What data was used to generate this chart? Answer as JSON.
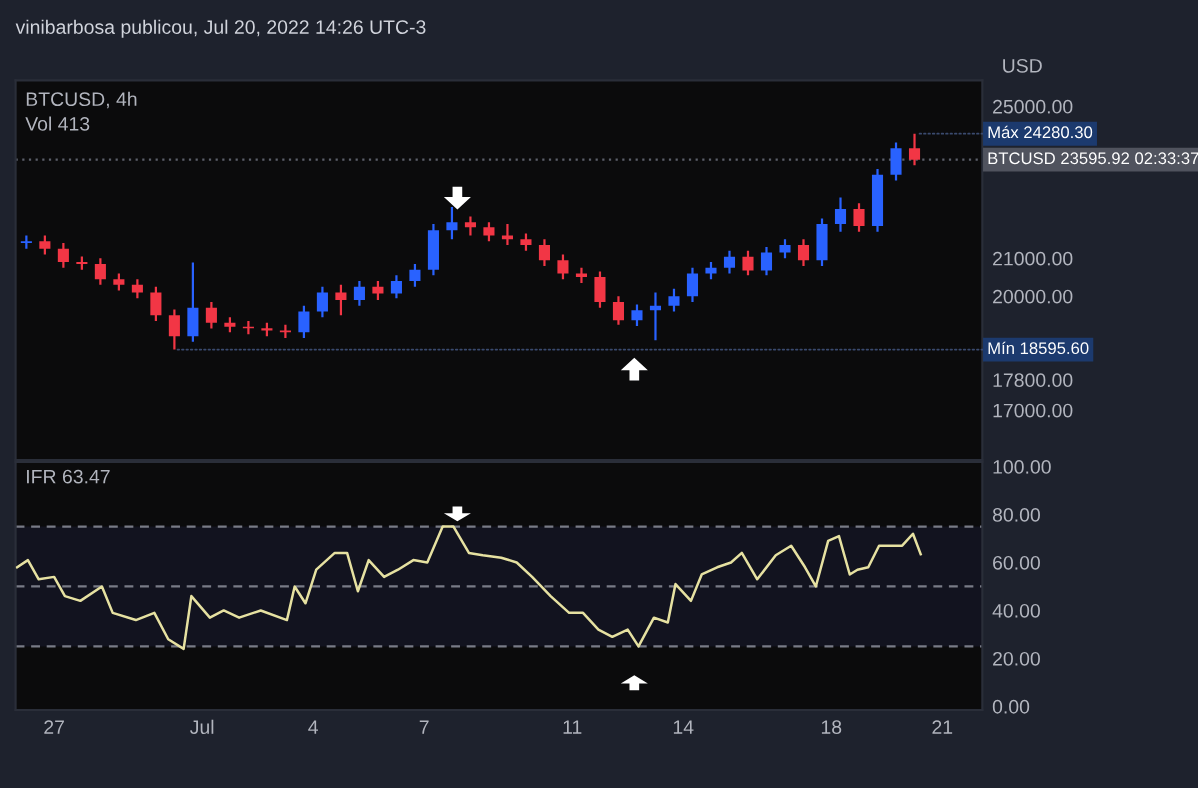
{
  "chart_data": [
    {
      "type": "candlestick",
      "title": "BTCUSD, 4h",
      "ylabel": "USD",
      "grid": false,
      "tick_labels": "y",
      "x": [
        "2022-06-26T06:00",
        "2022-06-26T18:00",
        "2022-06-27T06:00",
        "2022-06-27T18:00",
        "2022-06-28T06:00",
        "2022-06-28T18:00",
        "2022-06-29T06:00",
        "2022-06-29T18:00",
        "2022-06-30T06:00",
        "2022-06-30T18:00",
        "2022-07-01T06:00",
        "2022-07-01T18:00",
        "2022-07-02T06:00",
        "2022-07-02T18:00",
        "2022-07-03T06:00",
        "2022-07-03T18:00",
        "2022-07-04T06:00",
        "2022-07-04T18:00",
        "2022-07-05T06:00",
        "2022-07-05T18:00",
        "2022-07-06T06:00",
        "2022-07-06T18:00",
        "2022-07-07T06:00",
        "2022-07-07T18:00",
        "2022-07-08T06:00",
        "2022-07-08T18:00",
        "2022-07-09T06:00",
        "2022-07-09T18:00",
        "2022-07-10T06:00",
        "2022-07-10T18:00",
        "2022-07-11T06:00",
        "2022-07-11T18:00",
        "2022-07-12T06:00",
        "2022-07-12T18:00",
        "2022-07-13T06:00",
        "2022-07-13T18:00",
        "2022-07-14T06:00",
        "2022-07-14T18:00",
        "2022-07-15T06:00",
        "2022-07-15T18:00",
        "2022-07-16T06:00",
        "2022-07-16T18:00",
        "2022-07-17T06:00",
        "2022-07-17T18:00",
        "2022-07-18T06:00",
        "2022-07-18T18:00",
        "2022-07-19T06:00",
        "2022-07-19T18:00",
        "2022-07-20T06:00"
      ],
      "ohlc": [
        [
          21400,
          21600,
          21250,
          21450
        ],
        [
          21450,
          21600,
          21100,
          21250
        ],
        [
          21250,
          21400,
          20750,
          20900
        ],
        [
          20900,
          21050,
          20700,
          20850
        ],
        [
          20850,
          21000,
          20300,
          20450
        ],
        [
          20450,
          20600,
          20150,
          20300
        ],
        [
          20300,
          20450,
          19950,
          20100
        ],
        [
          20100,
          20250,
          19350,
          19500
        ],
        [
          19500,
          19650,
          18595.6,
          18950
        ],
        [
          18950,
          20890,
          18800,
          19700
        ],
        [
          19700,
          19850,
          19150,
          19300
        ],
        [
          19300,
          19450,
          19050,
          19200
        ],
        [
          19200,
          19350,
          19000,
          19160
        ],
        [
          19160,
          19300,
          18950,
          19100
        ],
        [
          19100,
          19250,
          18900,
          19050
        ],
        [
          19050,
          19750,
          18900,
          19600
        ],
        [
          19600,
          20250,
          19450,
          20100
        ],
        [
          20100,
          20300,
          19500,
          19900
        ],
        [
          19900,
          20400,
          19750,
          20250
        ],
        [
          20250,
          20400,
          19900,
          20070
        ],
        [
          20070,
          20550,
          19950,
          20400
        ],
        [
          20400,
          20850,
          20250,
          20700
        ],
        [
          20700,
          21900,
          20550,
          21740
        ],
        [
          21740,
          22350,
          21500,
          21950
        ],
        [
          21950,
          22100,
          21600,
          21820
        ],
        [
          21820,
          21950,
          21450,
          21600
        ],
        [
          21600,
          21900,
          21350,
          21500
        ],
        [
          21500,
          21650,
          21200,
          21350
        ],
        [
          21350,
          21500,
          20800,
          20950
        ],
        [
          20950,
          21100,
          20450,
          20600
        ],
        [
          20600,
          20750,
          20350,
          20510
        ],
        [
          20510,
          20650,
          19700,
          19850
        ],
        [
          19850,
          20000,
          19250,
          19370
        ],
        [
          19370,
          19780,
          19220,
          19630
        ],
        [
          19630,
          20100,
          18840,
          19750
        ],
        [
          19750,
          20200,
          19600,
          20000
        ],
        [
          20000,
          20750,
          19850,
          20600
        ],
        [
          20600,
          20900,
          20450,
          20750
        ],
        [
          20750,
          21200,
          20600,
          21040
        ],
        [
          21040,
          21200,
          20550,
          20680
        ],
        [
          20680,
          21300,
          20550,
          21150
        ],
        [
          21150,
          21500,
          21000,
          21350
        ],
        [
          21350,
          21500,
          20800,
          20950
        ],
        [
          20950,
          22050,
          20800,
          21900
        ],
        [
          21900,
          22600,
          21700,
          22300
        ],
        [
          22300,
          22450,
          21700,
          21850
        ],
        [
          21850,
          23350,
          21700,
          23200
        ],
        [
          23200,
          24050,
          23050,
          23900
        ],
        [
          23900,
          24280.3,
          23450,
          23595.92
        ]
      ],
      "colors": [
        "#2962ff",
        "#f23645",
        "#f23645",
        "#f23645",
        "#f23645",
        "#f23645",
        "#f23645",
        "#f23645",
        "#f23645",
        "#2962ff",
        "#f23645",
        "#f23645",
        "#f23645",
        "#f23645",
        "#f23645",
        "#2962ff",
        "#2962ff",
        "#f23645",
        "#2962ff",
        "#f23645",
        "#2962ff",
        "#2962ff",
        "#2962ff",
        "#2962ff",
        "#f23645",
        "#f23645",
        "#f23645",
        "#f23645",
        "#f23645",
        "#f23645",
        "#f23645",
        "#f23645",
        "#f23645",
        "#2962ff",
        "#2962ff",
        "#2962ff",
        "#2962ff",
        "#2962ff",
        "#2962ff",
        "#f23645",
        "#2962ff",
        "#2962ff",
        "#f23645",
        "#2962ff",
        "#2962ff",
        "#f23645",
        "#2962ff",
        "#2962ff",
        "#f23645"
      ],
      "xlim": [
        "2022-06-25T23:00",
        "2022-07-22T02:00"
      ],
      "ylim": [
        15684,
        25684
      ],
      "yticks": [
        {
          "value": 17000,
          "label": "17000.00"
        },
        {
          "value": 17800,
          "label": "17800.00"
        },
        {
          "value": 20000,
          "label": "20000.00"
        },
        {
          "value": 21000,
          "label": "21000.00"
        },
        {
          "value": 25000,
          "label": "25000.00"
        }
      ],
      "ref_lines": [
        {
          "axis": "y",
          "value": 23595.92,
          "label": "BTCUSD 23595.92 02:33:37",
          "line_style": "dotted",
          "color": "#5d606b"
        }
      ],
      "annotations": [
        "vinibarbosa publicou, Jul 20, 2022 14:26 UTC-3",
        "Vol 413",
        {
          "text": "Máx 24280.30",
          "x": "2022-07-20T06:00",
          "y": 24280.3
        },
        {
          "text": "Mín 18595.60",
          "x": "2022-06-30T06:00",
          "y": 18595.6
        }
      ]
    },
    {
      "type": "line",
      "title": "IFR 63.47",
      "grid": false,
      "series": [
        {
          "color": "#e6e1a1",
          "line_style": "solid",
          "x": [
            "2022-06-26T00:00",
            "2022-06-26T07:00",
            "2022-06-26T14:00",
            "2022-06-27T00:00",
            "2022-06-27T07:00",
            "2022-06-27T17:00",
            "2022-06-28T07:00",
            "2022-06-28T14:00",
            "2022-06-29T05:00",
            "2022-06-29T17:00",
            "2022-06-30T02:00",
            "2022-06-30T12:00",
            "2022-06-30T17:00",
            "2022-07-01T05:00",
            "2022-07-01T14:00",
            "2022-07-02T00:00",
            "2022-07-02T14:00",
            "2022-07-03T07:00",
            "2022-07-03T12:00",
            "2022-07-03T19:00",
            "2022-07-04T02:00",
            "2022-07-04T14:00",
            "2022-07-04T22:00",
            "2022-07-05T05:00",
            "2022-07-05T12:00",
            "2022-07-05T22:00",
            "2022-07-06T07:00",
            "2022-07-06T17:00",
            "2022-07-07T02:00",
            "2022-07-07T12:00",
            "2022-07-07T19:00",
            "2022-07-08T05:00",
            "2022-07-08T14:00",
            "2022-07-09T02:00",
            "2022-07-09T12:00",
            "2022-07-09T22:00",
            "2022-07-10T10:00",
            "2022-07-10T22:00",
            "2022-07-11T07:00",
            "2022-07-11T17:00",
            "2022-07-12T02:00",
            "2022-07-12T12:00",
            "2022-07-12T19:00",
            "2022-07-13T05:00",
            "2022-07-13T14:00",
            "2022-07-13T19:00",
            "2022-07-14T05:00",
            "2022-07-14T12:00",
            "2022-07-14T22:00",
            "2022-07-15T07:00",
            "2022-07-15T14:00",
            "2022-07-16T00:00",
            "2022-07-16T12:00",
            "2022-07-16T22:00",
            "2022-07-17T07:00",
            "2022-07-17T14:00",
            "2022-07-17T22:00",
            "2022-07-18T05:00",
            "2022-07-18T12:00",
            "2022-07-18T17:00",
            "2022-07-19T00:00",
            "2022-07-19T07:00",
            "2022-07-19T22:00",
            "2022-07-20T05:00",
            "2022-07-20T10:00"
          ],
          "values": [
            58,
            61,
            53,
            54,
            46,
            44,
            50,
            39,
            36,
            39,
            28,
            24,
            46,
            37,
            40,
            37,
            40,
            36,
            50,
            43,
            57,
            64,
            64,
            48,
            61,
            54,
            57,
            61,
            60,
            75,
            75,
            64,
            63,
            62,
            60,
            54,
            46,
            39,
            39,
            32,
            29,
            32,
            25,
            37,
            35,
            51,
            44,
            55,
            58,
            60,
            64,
            53,
            63,
            67,
            58,
            50,
            69,
            71,
            55,
            57,
            58,
            67,
            67,
            72,
            63.47
          ]
        }
      ],
      "xlim": [
        "2022-06-25T23:00",
        "2022-07-22T02:00"
      ],
      "xticks": [
        {
          "value": "2022-06-27",
          "label": "27"
        },
        {
          "value": "2022-07-01",
          "label": "Jul"
        },
        {
          "value": "2022-07-04",
          "label": "4"
        },
        {
          "value": "2022-07-07",
          "label": "7"
        },
        {
          "value": "2022-07-11",
          "label": "11"
        },
        {
          "value": "2022-07-14",
          "label": "14"
        },
        {
          "value": "2022-07-18",
          "label": "18"
        },
        {
          "value": "2022-07-21",
          "label": "21"
        }
      ],
      "ylim": [
        -1.5,
        102
      ],
      "yticks": [
        {
          "value": 0,
          "label": "0.00"
        },
        {
          "value": 20,
          "label": "20.00"
        },
        {
          "value": 40,
          "label": "40.00"
        },
        {
          "value": 60,
          "label": "60.00"
        },
        {
          "value": 80,
          "label": "80.00"
        },
        {
          "value": 100,
          "label": "100.00"
        }
      ],
      "ref_lines": [
        {
          "axis": "y",
          "value": 75,
          "line_style": "dashed",
          "color": "#787b86"
        },
        {
          "axis": "y",
          "value": 50,
          "line_style": "dashed",
          "color": "#787b86"
        },
        {
          "axis": "y",
          "value": 25,
          "line_style": "dashed",
          "color": "#787b86"
        }
      ],
      "bands": [
        {
          "axis": "y",
          "from": 25,
          "to": 75,
          "color": "#12131f"
        }
      ]
    }
  ]
}
